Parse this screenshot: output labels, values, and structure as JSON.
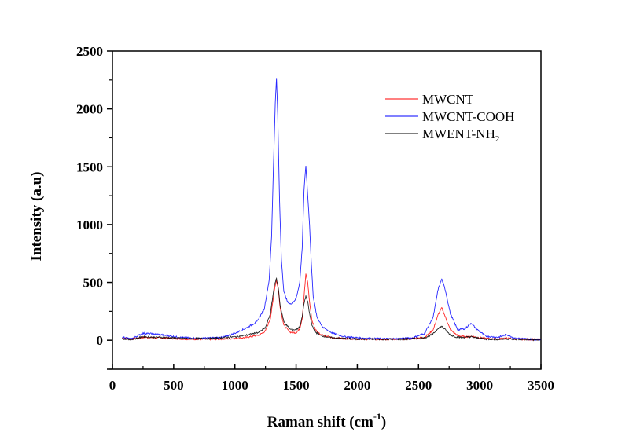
{
  "chart_data": {
    "type": "line",
    "title": "",
    "xlabel": "Raman shift (cm",
    "xlabel_superscript": "-1",
    "xlabel_suffix": ")",
    "ylabel": "Intensity (a.u)",
    "xlim": [
      0,
      3500
    ],
    "ylim": [
      -250,
      2500
    ],
    "x_ticks": [
      0,
      500,
      1000,
      1500,
      2000,
      2500,
      3000,
      3500
    ],
    "x_tick_labels": [
      "0",
      "500",
      "1000",
      "1500",
      "2000",
      "2500",
      "3000",
      "3500"
    ],
    "y_ticks": [
      0,
      500,
      1000,
      1500,
      2000,
      2500
    ],
    "y_tick_labels": [
      "0",
      "500",
      "1000",
      "1500",
      "2000",
      "2500"
    ],
    "grid": false,
    "legend_position": "top-right",
    "series": [
      {
        "name": "MWCNT",
        "legend_main": "MWCNT",
        "legend_sub": "",
        "color": "#ff0000",
        "x": [
          80,
          150,
          250,
          400,
          600,
          800,
          1000,
          1100,
          1200,
          1250,
          1290,
          1310,
          1325,
          1340,
          1355,
          1370,
          1400,
          1450,
          1500,
          1530,
          1550,
          1565,
          1580,
          1595,
          1610,
          1630,
          1660,
          1700,
          1800,
          2000,
          2200,
          2400,
          2550,
          2620,
          2660,
          2690,
          2720,
          2760,
          2820,
          2880,
          2930,
          2980,
          3050,
          3150,
          3220,
          3300,
          3500
        ],
        "y": [
          20,
          10,
          25,
          20,
          10,
          8,
          15,
          25,
          45,
          80,
          190,
          330,
          450,
          520,
          440,
          280,
          130,
          70,
          65,
          100,
          190,
          380,
          570,
          500,
          330,
          170,
          90,
          50,
          20,
          10,
          8,
          10,
          25,
          90,
          220,
          280,
          200,
          90,
          40,
          30,
          35,
          25,
          15,
          12,
          18,
          10,
          5
        ]
      },
      {
        "name": "MWCNT-COOH",
        "legend_main": "MWCNT-COOH",
        "legend_sub": "",
        "color": "#0000ff",
        "x": [
          80,
          150,
          250,
          350,
          450,
          550,
          700,
          900,
          1000,
          1100,
          1180,
          1240,
          1280,
          1300,
          1315,
          1330,
          1340,
          1350,
          1365,
          1380,
          1400,
          1430,
          1460,
          1500,
          1530,
          1550,
          1565,
          1580,
          1595,
          1610,
          1625,
          1640,
          1670,
          1720,
          1800,
          1900,
          2100,
          2300,
          2450,
          2550,
          2620,
          2660,
          2690,
          2720,
          2760,
          2820,
          2880,
          2930,
          2970,
          3050,
          3150,
          3220,
          3280,
          3400,
          3500
        ],
        "y": [
          30,
          10,
          60,
          55,
          40,
          25,
          15,
          25,
          60,
          110,
          160,
          270,
          520,
          900,
          1500,
          2050,
          2270,
          1950,
          1200,
          700,
          420,
          330,
          310,
          360,
          500,
          800,
          1300,
          1510,
          1250,
          1000,
          650,
          380,
          200,
          110,
          60,
          30,
          15,
          12,
          20,
          60,
          200,
          440,
          530,
          430,
          230,
          90,
          100,
          150,
          100,
          35,
          25,
          50,
          20,
          10,
          5
        ]
      },
      {
        "name": "MWENT-NH2",
        "legend_main": "MWENT-NH",
        "legend_sub": "2",
        "color": "#000000",
        "x": [
          80,
          150,
          250,
          400,
          600,
          800,
          1000,
          1100,
          1200,
          1250,
          1290,
          1310,
          1325,
          1340,
          1355,
          1370,
          1400,
          1450,
          1500,
          1530,
          1550,
          1565,
          1580,
          1595,
          1610,
          1630,
          1660,
          1700,
          1800,
          2000,
          2200,
          2400,
          2550,
          2620,
          2660,
          2690,
          2720,
          2760,
          2820,
          2880,
          2930,
          2980,
          3050,
          3150,
          3220,
          3300,
          3500
        ],
        "y": [
          15,
          5,
          30,
          25,
          15,
          15,
          30,
          45,
          70,
          110,
          230,
          380,
          490,
          530,
          450,
          300,
          160,
          95,
          90,
          120,
          200,
          320,
          380,
          330,
          230,
          130,
          70,
          40,
          20,
          10,
          8,
          10,
          20,
          55,
          105,
          120,
          90,
          45,
          25,
          25,
          30,
          20,
          10,
          8,
          12,
          8,
          3
        ]
      }
    ]
  }
}
